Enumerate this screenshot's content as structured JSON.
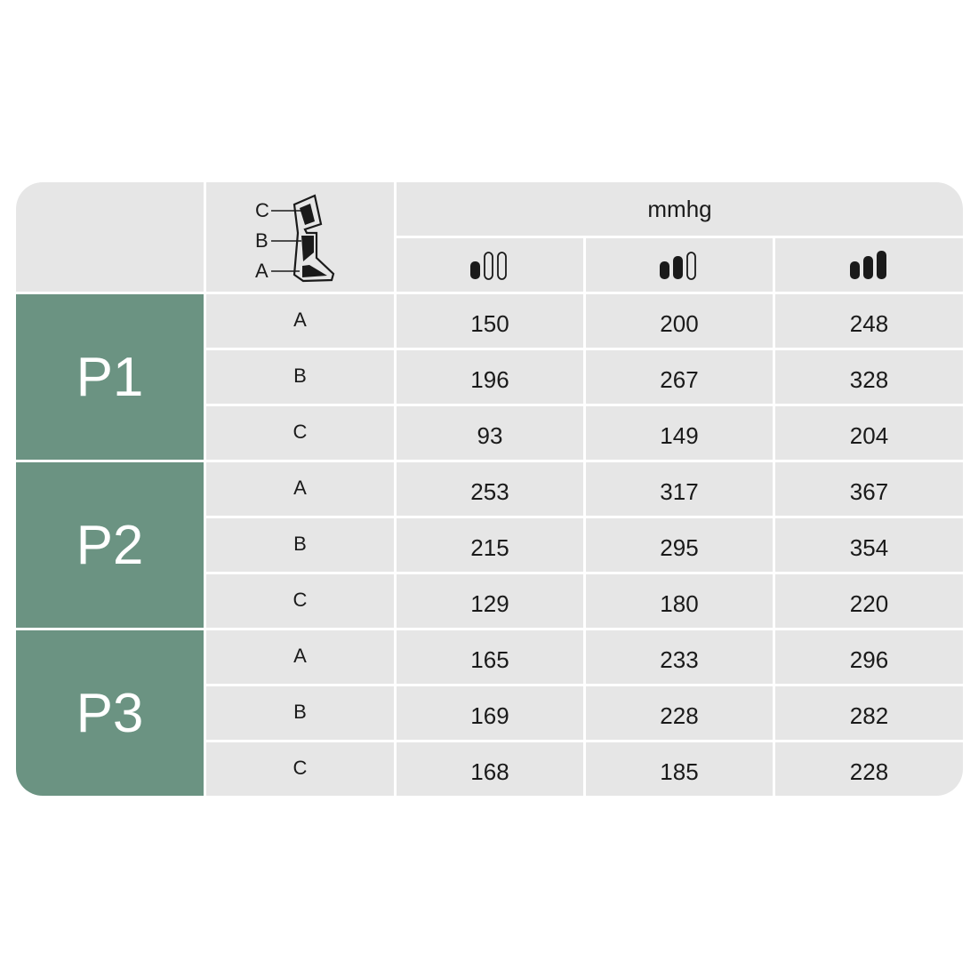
{
  "unit_label": "mmhg",
  "leg_diagram": {
    "icon": "leg-zones-icon",
    "labels": [
      "C",
      "B",
      "A"
    ]
  },
  "intensity_levels": [
    {
      "icon": "intensity-low-icon",
      "level": 1,
      "of": 3
    },
    {
      "icon": "intensity-medium-icon",
      "level": 2,
      "of": 3
    },
    {
      "icon": "intensity-high-icon",
      "level": 3,
      "of": 3
    }
  ],
  "colors": {
    "program_bg": "#6b9382",
    "cell_bg": "#e6e6e6"
  },
  "programs": [
    {
      "name": "P1",
      "rows": [
        {
          "zone": "A",
          "values": [
            "150",
            "200",
            "248"
          ]
        },
        {
          "zone": "B",
          "values": [
            "196",
            "267",
            "328"
          ]
        },
        {
          "zone": "C",
          "values": [
            "93",
            "149",
            "204"
          ]
        }
      ]
    },
    {
      "name": "P2",
      "rows": [
        {
          "zone": "A",
          "values": [
            "253",
            "317",
            "367"
          ]
        },
        {
          "zone": "B",
          "values": [
            "215",
            "295",
            "354"
          ]
        },
        {
          "zone": "C",
          "values": [
            "129",
            "180",
            "220"
          ]
        }
      ]
    },
    {
      "name": "P3",
      "rows": [
        {
          "zone": "A",
          "values": [
            "165",
            "233",
            "296"
          ]
        },
        {
          "zone": "B",
          "values": [
            "169",
            "228",
            "282"
          ]
        },
        {
          "zone": "C",
          "values": [
            "168",
            "185",
            "228"
          ]
        }
      ]
    }
  ]
}
